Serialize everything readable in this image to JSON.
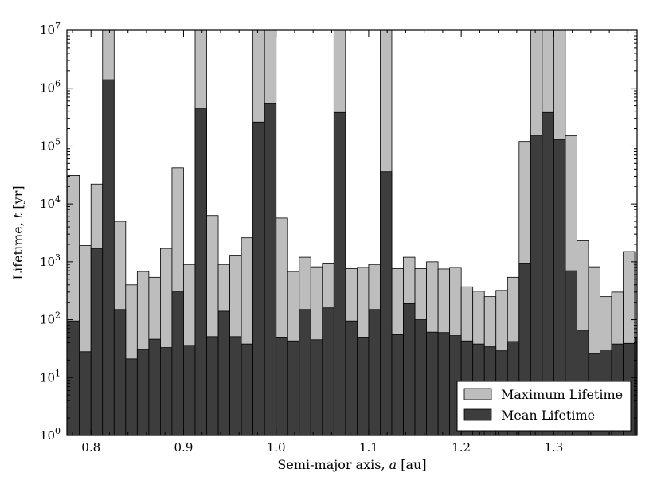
{
  "chart_data": {
    "type": "bar",
    "subtype": "overlaid-histogram",
    "title": "",
    "xlabel": "Semi-major axis, a [au]",
    "ylabel": "Lifetime, t [yr]",
    "xlim": [
      0.774,
      1.39
    ],
    "ylim": [
      1,
      10000000
    ],
    "yscale": "log",
    "grid": false,
    "legend_position": "bottom-right",
    "bin_width": 0.0125,
    "bin_start": 0.775,
    "x_ticks": [
      "0.8",
      "0.9",
      "1.0",
      "1.1",
      "1.2",
      "1.3"
    ],
    "y_ticks": [
      {
        "base": "10",
        "exp": "0"
      },
      {
        "base": "10",
        "exp": "1"
      },
      {
        "base": "10",
        "exp": "2"
      },
      {
        "base": "10",
        "exp": "3"
      },
      {
        "base": "10",
        "exp": "4"
      },
      {
        "base": "10",
        "exp": "5"
      },
      {
        "base": "10",
        "exp": "6"
      },
      {
        "base": "10",
        "exp": "7"
      }
    ],
    "series": [
      {
        "name": "Maximum Lifetime",
        "color": "#bdbdbd",
        "values": [
          31000,
          1900,
          22000,
          10000000,
          5000,
          400,
          680,
          540,
          1700,
          42000,
          900,
          10000000,
          6300,
          900,
          1300,
          2600,
          10000000,
          10000000,
          5700,
          680,
          1200,
          820,
          950,
          10000000,
          760,
          800,
          900,
          10000000,
          760,
          1200,
          760,
          1000,
          750,
          800,
          370,
          310,
          250,
          320,
          540,
          120000,
          10000000,
          10000000,
          10000000,
          150000,
          2300,
          820,
          250,
          300,
          1500,
          1000
        ]
      },
      {
        "name": "Mean Lifetime",
        "color": "#3d3d3d",
        "values": [
          95,
          28,
          1700,
          1400000,
          150,
          21,
          31,
          46,
          33,
          310,
          36,
          440000,
          51,
          140,
          51,
          38,
          260000,
          540000,
          50,
          43,
          150,
          45,
          160,
          380000,
          95,
          50,
          150,
          36000,
          55,
          190,
          100,
          61,
          60,
          53,
          43,
          38,
          34,
          29,
          42,
          950,
          150000,
          380000,
          130000,
          700,
          64,
          26,
          30,
          38,
          39,
          48
        ]
      }
    ]
  },
  "legend": {
    "max_label": "Maximum Lifetime",
    "mean_label": "Mean Lifetime"
  },
  "axes": {
    "xlabel_main": "Semi-major axis, ",
    "xlabel_var": "a",
    "xlabel_unit": " [au]",
    "ylabel_main": "Lifetime, ",
    "ylabel_var": "t",
    "ylabel_unit": " [yr]"
  }
}
